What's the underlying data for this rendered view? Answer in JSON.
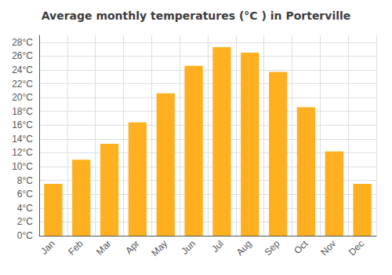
{
  "chart_data": {
    "type": "bar",
    "title": "Average monthly temperatures (°C ) in Porterville",
    "categories": [
      "Jan",
      "Feb",
      "Mar",
      "Apr",
      "May",
      "Jun",
      "Jul",
      "Aug",
      "Sep",
      "Oct",
      "Nov",
      "Dec"
    ],
    "values": [
      7.5,
      11.0,
      13.3,
      16.4,
      20.6,
      24.6,
      27.3,
      26.5,
      23.7,
      18.6,
      12.2,
      7.5
    ],
    "color": "#FFB020",
    "ylim": [
      0,
      29
    ],
    "yticks": [
      {
        "value": 0,
        "label": "0°C"
      },
      {
        "value": 2,
        "label": "2°C"
      },
      {
        "value": 4,
        "label": "4°C"
      },
      {
        "value": 6,
        "label": "6°C"
      },
      {
        "value": 8,
        "label": "8°C"
      },
      {
        "value": 10,
        "label": "10°C"
      },
      {
        "value": 12,
        "label": "12°C"
      },
      {
        "value": 14,
        "label": "14°C"
      },
      {
        "value": 16,
        "label": "16°C"
      },
      {
        "value": 18,
        "label": "18°C"
      },
      {
        "value": 20,
        "label": "20°C"
      },
      {
        "value": 22,
        "label": "22°C"
      },
      {
        "value": 24,
        "label": "24°C"
      },
      {
        "value": 26,
        "label": "26°C"
      },
      {
        "value": 28,
        "label": "28°C"
      }
    ],
    "grid": true
  }
}
